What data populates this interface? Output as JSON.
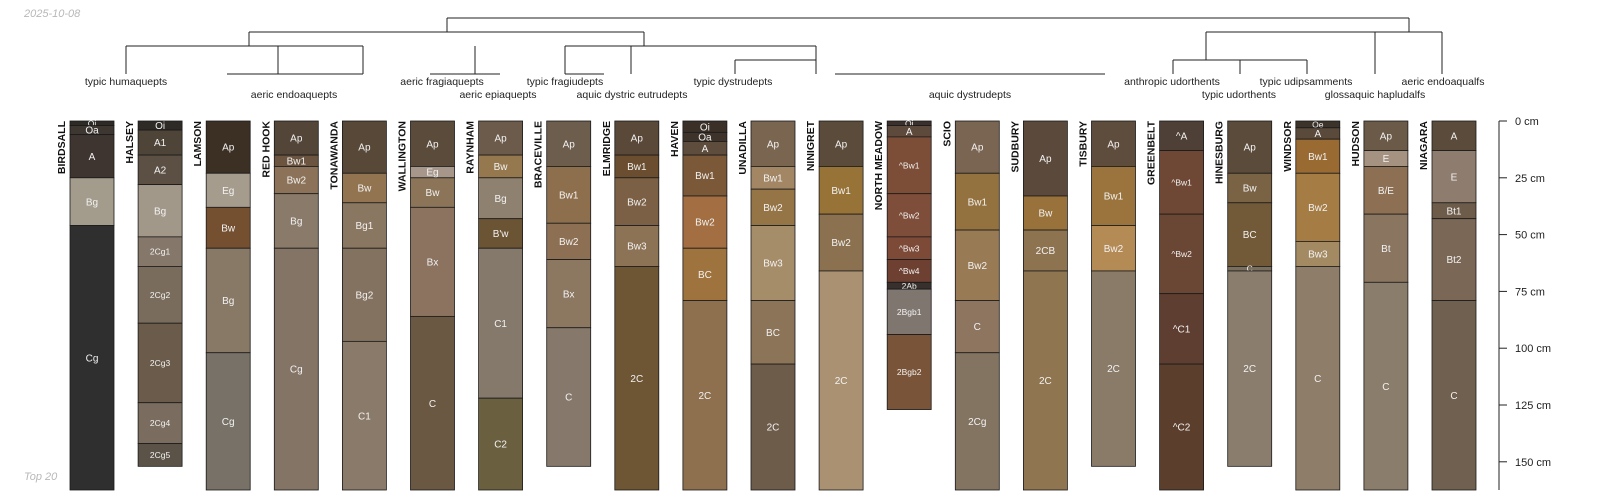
{
  "header": {
    "date": "2025-10-08",
    "footer_note": "Top 20"
  },
  "chart_data": {
    "type": "soil_profile_sketch",
    "depth_unit": "cm",
    "depth_ticks": [
      {
        "depth": 0,
        "label": "0 cm"
      },
      {
        "depth": 25,
        "label": "25 cm"
      },
      {
        "depth": 50,
        "label": "50 cm"
      },
      {
        "depth": 75,
        "label": "75 cm"
      },
      {
        "depth": 100,
        "label": "100 cm"
      },
      {
        "depth": 125,
        "label": "125 cm"
      },
      {
        "depth": 150,
        "label": "150 cm"
      }
    ],
    "dendrogram_labels": [
      {
        "text": "typic humaquepts"
      },
      {
        "text": "aeric endoaquepts"
      },
      {
        "text": "aeric fragiaquepts"
      },
      {
        "text": "aeric epiaquepts"
      },
      {
        "text": "typic fragiudepts"
      },
      {
        "text": "aquic dystric eutrudepts"
      },
      {
        "text": "typic dystrudepts"
      },
      {
        "text": "aquic dystrudepts"
      },
      {
        "text": "anthropic udorthents"
      },
      {
        "text": "typic udorthents"
      },
      {
        "text": "typic udipsamments"
      },
      {
        "text": "glossaquic hapludalfs"
      },
      {
        "text": "aeric endoaqualfs"
      }
    ],
    "profiles": [
      {
        "name": "BIRDSALL",
        "horizons": [
          {
            "name": "Oi",
            "top": 0,
            "bottom": 2,
            "color": "#2e2a26"
          },
          {
            "name": "Oa",
            "top": 2,
            "bottom": 6,
            "color": "#3d3631"
          },
          {
            "name": "A",
            "top": 6,
            "bottom": 25,
            "color": "#3e3530"
          },
          {
            "name": "Bg",
            "top": 25,
            "bottom": 46,
            "color": "#a39c8c"
          },
          {
            "name": "Cg",
            "top": 46,
            "bottom": 170,
            "color": "#2f2f30"
          }
        ]
      },
      {
        "name": "HALSEY",
        "horizons": [
          {
            "name": "Oi",
            "top": 0,
            "bottom": 4,
            "color": "#2e2a25"
          },
          {
            "name": "A1",
            "top": 4,
            "bottom": 15,
            "color": "#4e4438"
          },
          {
            "name": "A2",
            "top": 15,
            "bottom": 28,
            "color": "#5b5043"
          },
          {
            "name": "Bg",
            "top": 28,
            "bottom": 51,
            "color": "#a2988a"
          },
          {
            "name": "2Cg1",
            "top": 51,
            "bottom": 64,
            "color": "#85786a"
          },
          {
            "name": "2Cg2",
            "top": 64,
            "bottom": 89,
            "color": "#7a6c5c"
          },
          {
            "name": "2Cg3",
            "top": 89,
            "bottom": 124,
            "color": "#6a5b4a"
          },
          {
            "name": "2Cg4",
            "top": 124,
            "bottom": 142,
            "color": "#7a6d5f"
          },
          {
            "name": "2Cg5",
            "top": 142,
            "bottom": 152,
            "color": "#5c5348"
          }
        ]
      },
      {
        "name": "LAMSON",
        "horizons": [
          {
            "name": "Ap",
            "top": 0,
            "bottom": 23,
            "color": "#3c3025"
          },
          {
            "name": "Eg",
            "top": 23,
            "bottom": 38,
            "color": "#a69c8e"
          },
          {
            "name": "Bw",
            "top": 38,
            "bottom": 56,
            "color": "#745031"
          },
          {
            "name": "Bg",
            "top": 56,
            "bottom": 102,
            "color": "#887866"
          },
          {
            "name": "Cg",
            "top": 102,
            "bottom": 170,
            "color": "#787168"
          }
        ]
      },
      {
        "name": "RED HOOK",
        "horizons": [
          {
            "name": "Ap",
            "top": 0,
            "bottom": 15,
            "color": "#534639"
          },
          {
            "name": "Bw1",
            "top": 15,
            "bottom": 20,
            "color": "#6b5540"
          },
          {
            "name": "Bw2",
            "top": 20,
            "bottom": 32,
            "color": "#8c7258"
          },
          {
            "name": "Bg",
            "top": 32,
            "bottom": 56,
            "color": "#8a7a6a"
          },
          {
            "name": "Cg",
            "top": 56,
            "bottom": 170,
            "color": "#847465"
          }
        ]
      },
      {
        "name": "TONAWANDA",
        "horizons": [
          {
            "name": "Ap",
            "top": 0,
            "bottom": 23,
            "color": "#574838"
          },
          {
            "name": "Bw",
            "top": 23,
            "bottom": 36,
            "color": "#927450"
          },
          {
            "name": "Bg1",
            "top": 36,
            "bottom": 56,
            "color": "#8a7762"
          },
          {
            "name": "Bg2",
            "top": 56,
            "bottom": 97,
            "color": "#847260"
          },
          {
            "name": "C1",
            "top": 97,
            "bottom": 170,
            "color": "#8a7a6a"
          }
        ]
      },
      {
        "name": "WALLINGTON",
        "horizons": [
          {
            "name": "Ap",
            "top": 0,
            "bottom": 20,
            "color": "#5b4b3b"
          },
          {
            "name": "Eg",
            "top": 20,
            "bottom": 25,
            "color": "#a7978a"
          },
          {
            "name": "Bw",
            "top": 25,
            "bottom": 38,
            "color": "#8c7458"
          },
          {
            "name": "Bx",
            "top": 38,
            "bottom": 86,
            "color": "#8b7360"
          },
          {
            "name": "C",
            "top": 86,
            "bottom": 170,
            "color": "#6a5842"
          }
        ]
      },
      {
        "name": "RAYNHAM",
        "horizons": [
          {
            "name": "Ap",
            "top": 0,
            "bottom": 15,
            "color": "#6c5b4a"
          },
          {
            "name": "Bw",
            "top": 15,
            "bottom": 25,
            "color": "#96784f"
          },
          {
            "name": "Bg",
            "top": 25,
            "bottom": 43,
            "color": "#8e8170"
          },
          {
            "name": "B'w",
            "top": 43,
            "bottom": 56,
            "color": "#6b5434"
          },
          {
            "name": "C1",
            "top": 56,
            "bottom": 122,
            "color": "#84796a"
          },
          {
            "name": "C2",
            "top": 122,
            "bottom": 170,
            "color": "#6a6040"
          }
        ]
      },
      {
        "name": "BRACEVILLE",
        "horizons": [
          {
            "name": "Ap",
            "top": 0,
            "bottom": 20,
            "color": "#6c5d4d"
          },
          {
            "name": "Bw1",
            "top": 20,
            "bottom": 45,
            "color": "#8e6f4d"
          },
          {
            "name": "Bw2",
            "top": 45,
            "bottom": 61,
            "color": "#8d7053"
          },
          {
            "name": "Bx",
            "top": 61,
            "bottom": 91,
            "color": "#8c7761"
          },
          {
            "name": "C",
            "top": 91,
            "bottom": 152,
            "color": "#86796b"
          }
        ]
      },
      {
        "name": "ELMRIDGE",
        "horizons": [
          {
            "name": "Ap",
            "top": 0,
            "bottom": 15,
            "color": "#5a4838"
          },
          {
            "name": "Bw1",
            "top": 15,
            "bottom": 25,
            "color": "#6b4e30"
          },
          {
            "name": "Bw2",
            "top": 25,
            "bottom": 46,
            "color": "#7b6045"
          },
          {
            "name": "Bw3",
            "top": 46,
            "bottom": 64,
            "color": "#8d7356"
          },
          {
            "name": "2C",
            "top": 64,
            "bottom": 170,
            "color": "#6e5534"
          }
        ]
      },
      {
        "name": "HAVEN",
        "horizons": [
          {
            "name": "Oi",
            "top": 0,
            "bottom": 5,
            "color": "#3a3028"
          },
          {
            "name": "Oa",
            "top": 5,
            "bottom": 9,
            "color": "#3e332a"
          },
          {
            "name": "A",
            "top": 9,
            "bottom": 15,
            "color": "#5e4d3c"
          },
          {
            "name": "Bw1",
            "top": 15,
            "bottom": 33,
            "color": "#7a5838"
          },
          {
            "name": "Bw2",
            "top": 33,
            "bottom": 56,
            "color": "#a26e42"
          },
          {
            "name": "BC",
            "top": 56,
            "bottom": 79,
            "color": "#9e733e"
          },
          {
            "name": "2C",
            "top": 79,
            "bottom": 170,
            "color": "#8e704f"
          }
        ]
      },
      {
        "name": "UNADILLA",
        "horizons": [
          {
            "name": "Ap",
            "top": 0,
            "bottom": 20,
            "color": "#7a6550"
          },
          {
            "name": "Bw1",
            "top": 20,
            "bottom": 30,
            "color": "#a38765"
          },
          {
            "name": "Bw2",
            "top": 30,
            "bottom": 46,
            "color": "#957446"
          },
          {
            "name": "Bw3",
            "top": 46,
            "bottom": 79,
            "color": "#a68d6a"
          },
          {
            "name": "BC",
            "top": 79,
            "bottom": 107,
            "color": "#8c7458"
          },
          {
            "name": "2C",
            "top": 107,
            "bottom": 170,
            "color": "#6e5c4a"
          }
        ]
      },
      {
        "name": "NINIGRET",
        "horizons": [
          {
            "name": "Ap",
            "top": 0,
            "bottom": 20,
            "color": "#5b4b3b"
          },
          {
            "name": "Bw1",
            "top": 20,
            "bottom": 41,
            "color": "#977337"
          },
          {
            "name": "Bw2",
            "top": 41,
            "bottom": 66,
            "color": "#8b7150"
          },
          {
            "name": "2C",
            "top": 66,
            "bottom": 170,
            "color": "#a99172"
          }
        ]
      },
      {
        "name": "NORTH MEADOW",
        "horizons": [
          {
            "name": "Oi",
            "top": 0,
            "bottom": 2,
            "color": "#3b302b"
          },
          {
            "name": "A",
            "top": 2,
            "bottom": 7,
            "color": "#5d4a3c"
          },
          {
            "name": "^Bw1",
            "top": 7,
            "bottom": 32,
            "color": "#7d4e37"
          },
          {
            "name": "^Bw2",
            "top": 32,
            "bottom": 51,
            "color": "#7e4e3a"
          },
          {
            "name": "^Bw3",
            "top": 51,
            "bottom": 61,
            "color": "#7d4a38"
          },
          {
            "name": "^Bw4",
            "top": 61,
            "bottom": 71,
            "color": "#6e4032"
          },
          {
            "name": "2Ab",
            "top": 71,
            "bottom": 74,
            "color": "#37302c"
          },
          {
            "name": "2Bgb1",
            "top": 74,
            "bottom": 94,
            "color": "#807670"
          },
          {
            "name": "2Bgb2",
            "top": 94,
            "bottom": 127,
            "color": "#7a5438"
          }
        ]
      },
      {
        "name": "SCIO",
        "horizons": [
          {
            "name": "Ap",
            "top": 0,
            "bottom": 23,
            "color": "#7a6552"
          },
          {
            "name": "Bw1",
            "top": 23,
            "bottom": 48,
            "color": "#94723f"
          },
          {
            "name": "Bw2",
            "top": 48,
            "bottom": 79,
            "color": "#987a55"
          },
          {
            "name": "C",
            "top": 79,
            "bottom": 102,
            "color": "#8d7560"
          },
          {
            "name": "2Cg",
            "top": 102,
            "bottom": 170,
            "color": "#837461"
          }
        ]
      },
      {
        "name": "SUDBURY",
        "horizons": [
          {
            "name": "Ap",
            "top": 0,
            "bottom": 33,
            "color": "#5b4a3b"
          },
          {
            "name": "Bw",
            "top": 33,
            "bottom": 48,
            "color": "#98723a"
          },
          {
            "name": "2CB",
            "top": 48,
            "bottom": 66,
            "color": "#8d7350"
          },
          {
            "name": "2C",
            "top": 66,
            "bottom": 170,
            "color": "#8f7550"
          }
        ]
      },
      {
        "name": "TISBURY",
        "horizons": [
          {
            "name": "Ap",
            "top": 0,
            "bottom": 20,
            "color": "#5e4c3c"
          },
          {
            "name": "Bw1",
            "top": 20,
            "bottom": 46,
            "color": "#9a743c"
          },
          {
            "name": "Bw2",
            "top": 46,
            "bottom": 66,
            "color": "#b48a55"
          },
          {
            "name": "2C",
            "top": 66,
            "bottom": 152,
            "color": "#8a7a68"
          }
        ]
      },
      {
        "name": "GREENBELT",
        "horizons": [
          {
            "name": "^A",
            "top": 0,
            "bottom": 13,
            "color": "#4e4036"
          },
          {
            "name": "^Bw1",
            "top": 13,
            "bottom": 41,
            "color": "#6e4834"
          },
          {
            "name": "^Bw2",
            "top": 41,
            "bottom": 76,
            "color": "#6a4634"
          },
          {
            "name": "^C1",
            "top": 76,
            "bottom": 107,
            "color": "#5e3e30"
          },
          {
            "name": "^C2",
            "top": 107,
            "bottom": 170,
            "color": "#5b3e2c"
          }
        ]
      },
      {
        "name": "HINESBURG",
        "horizons": [
          {
            "name": "Ap",
            "top": 0,
            "bottom": 23,
            "color": "#5b4b3b"
          },
          {
            "name": "Bw",
            "top": 23,
            "bottom": 36,
            "color": "#7a6244"
          },
          {
            "name": "BC",
            "top": 36,
            "bottom": 64,
            "color": "#725a38"
          },
          {
            "name": "C",
            "top": 64,
            "bottom": 66,
            "color": "#7a6e5d"
          },
          {
            "name": "2C",
            "top": 66,
            "bottom": 152,
            "color": "#8a7d6e"
          }
        ]
      },
      {
        "name": "WINDSOR",
        "horizons": [
          {
            "name": "Oe",
            "top": 0,
            "bottom": 3,
            "color": "#3c332a"
          },
          {
            "name": "A",
            "top": 3,
            "bottom": 8,
            "color": "#5a4a3b"
          },
          {
            "name": "Bw1",
            "top": 8,
            "bottom": 23,
            "color": "#9a6a33"
          },
          {
            "name": "Bw2",
            "top": 23,
            "bottom": 53,
            "color": "#a57c44"
          },
          {
            "name": "Bw3",
            "top": 53,
            "bottom": 64,
            "color": "#a48a63"
          },
          {
            "name": "C",
            "top": 64,
            "bottom": 170,
            "color": "#8e7d68"
          }
        ]
      },
      {
        "name": "HUDSON",
        "horizons": [
          {
            "name": "Ap",
            "top": 0,
            "bottom": 13,
            "color": "#6b5a48"
          },
          {
            "name": "E",
            "top": 13,
            "bottom": 20,
            "color": "#a59280"
          },
          {
            "name": "B/E",
            "top": 20,
            "bottom": 41,
            "color": "#8d7054"
          },
          {
            "name": "Bt",
            "top": 41,
            "bottom": 71,
            "color": "#8a7560"
          },
          {
            "name": "C",
            "top": 71,
            "bottom": 170,
            "color": "#8a7d6b"
          }
        ]
      },
      {
        "name": "NIAGARA",
        "horizons": [
          {
            "name": "A",
            "top": 0,
            "bottom": 13,
            "color": "#5b4b3b"
          },
          {
            "name": "E",
            "top": 13,
            "bottom": 36,
            "color": "#8e7d6e"
          },
          {
            "name": "Bt1",
            "top": 36,
            "bottom": 43,
            "color": "#6e5c4a"
          },
          {
            "name": "Bt2",
            "top": 43,
            "bottom": 79,
            "color": "#7a6755"
          },
          {
            "name": "C",
            "top": 79,
            "bottom": 170,
            "color": "#70604f"
          }
        ]
      }
    ]
  }
}
